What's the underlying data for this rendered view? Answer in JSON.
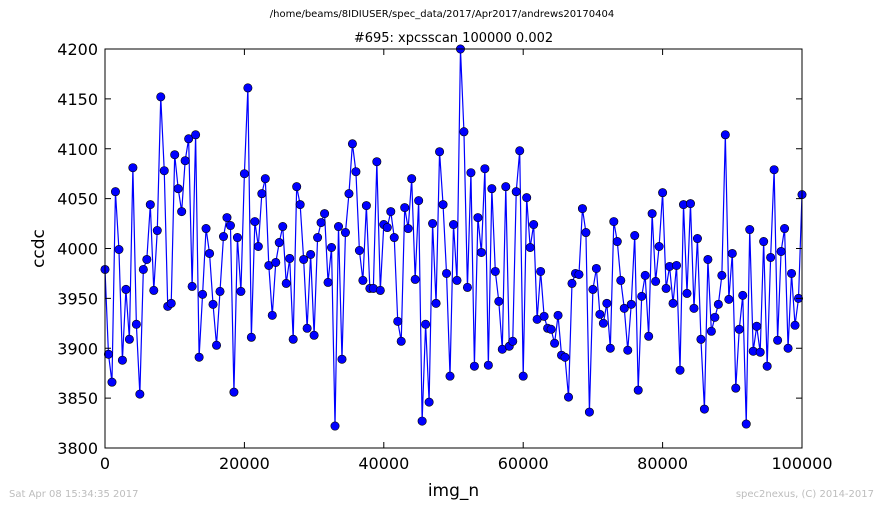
{
  "header": {
    "path": "/home/beams/8IDIUSER/spec_data/2017/Apr2017/andrews20170404"
  },
  "footer": {
    "timestamp": "Sat Apr 08 15:34:35 2017",
    "credit": "spec2nexus, (C) 2014-2017"
  },
  "chart_data": {
    "type": "line",
    "title": "#695: xpcsscan 100000 0.002",
    "xlabel": "img_n",
    "ylabel": "ccdc",
    "xlim": [
      0,
      100000
    ],
    "ylim": [
      3800,
      4200
    ],
    "xticks": [
      0,
      20000,
      40000,
      60000,
      80000,
      100000
    ],
    "yticks": [
      3800,
      3850,
      3900,
      3950,
      4000,
      4050,
      4100,
      4150,
      4200
    ],
    "grid": false,
    "marker": "circle",
    "color": "#0000ff",
    "series": [
      {
        "x": [
          0,
          500,
          1000,
          1500,
          2000,
          2500,
          3000,
          3500,
          4000,
          4500,
          5000,
          5500,
          6000,
          6500,
          7000,
          7500,
          8000,
          8500,
          9000,
          9500,
          10000,
          10500,
          11000,
          11500,
          12000,
          12500,
          13000,
          13500,
          14000,
          14500,
          15000,
          15500,
          16000,
          16500,
          17000,
          17500,
          18000,
          18500,
          19000,
          19500,
          20000,
          20500,
          21000,
          21500,
          22000,
          22500,
          23000,
          23500,
          24000,
          24500,
          25000,
          25500,
          26000,
          26500,
          27000,
          27500,
          28000,
          28500,
          29000,
          29500,
          30000,
          30500,
          31000,
          31500,
          32000,
          32500,
          33000,
          33500,
          34000,
          34500,
          35000,
          35500,
          36000,
          36500,
          37000,
          37500,
          38000,
          38500,
          39000,
          39500,
          40000,
          40500,
          41000,
          41500,
          42000,
          42500,
          43000,
          43500,
          44000,
          44500,
          45000,
          45500,
          46000,
          46500,
          47000,
          47500,
          48000,
          48500,
          49000,
          49500,
          50000,
          50500,
          51000,
          51500,
          52000,
          52500,
          53000,
          53500,
          54000,
          54500,
          55000,
          55500,
          56000,
          56500,
          57000,
          57500,
          58000,
          58500,
          59000,
          59500,
          60000,
          60500,
          61000,
          61500,
          62000,
          62500,
          63000,
          63500,
          64000,
          64500,
          65000,
          65500,
          66000,
          66500,
          67000,
          67500,
          68000,
          68500,
          69000,
          69500,
          70000,
          70500,
          71000,
          71500,
          72000,
          72500,
          73000,
          73500,
          74000,
          74500,
          75000,
          75500,
          76000,
          76500,
          77000,
          77500,
          78000,
          78500,
          79000,
          79500,
          80000,
          80500,
          81000,
          81500,
          82000,
          82500,
          83000,
          83500,
          84000,
          84500,
          85000,
          85500,
          86000,
          86500,
          87000,
          87500,
          88000,
          88500,
          89000,
          89500,
          90000,
          90500,
          91000,
          91500,
          92000,
          92500,
          93000,
          93500,
          94000,
          94500,
          95000,
          95500,
          96000,
          96500,
          97000,
          97500,
          98000,
          98500,
          99000,
          99500,
          100000
        ],
        "y": [
          3979,
          3894,
          3866,
          4057,
          3999,
          3888,
          3959,
          3909,
          4081,
          3924,
          3854,
          3979,
          3989,
          4044,
          3958,
          4018,
          4152,
          4078,
          3942,
          3945,
          4094,
          4060,
          4037,
          4088,
          4110,
          3962,
          4114,
          3891,
          3954,
          4020,
          3995,
          3944,
          3903,
          3957,
          4012,
          4031,
          4023,
          3856,
          4011,
          3957,
          4075,
          4161,
          3911,
          4027,
          4002,
          4055,
          4070,
          3983,
          3933,
          3986,
          4006,
          4022,
          3965,
          3990,
          3909,
          4062,
          4044,
          3989,
          3920,
          3994,
          3913,
          4011,
          4026,
          4035,
          3966,
          4001,
          3822,
          4022,
          3889,
          4016,
          4055,
          4105,
          4077,
          3998,
          3968,
          4043,
          3960,
          3960,
          4087,
          3958,
          4024,
          4021,
          4037,
          4011,
          3927,
          3907,
          4041,
          4020,
          4070,
          3969,
          4048,
          3827,
          3924,
          3846,
          4025,
          3945,
          4097,
          4044,
          3975,
          3872,
          4024,
          3968,
          4200,
          4117,
          3961,
          4076,
          3882,
          4031,
          3996,
          4080,
          3883,
          4060,
          3977,
          3947,
          3899,
          4062,
          3902,
          3907,
          4057,
          4098,
          3872,
          4051,
          4001,
          4024,
          3929,
          3977,
          3932,
          3920,
          3919,
          3905,
          3933,
          3893,
          3891,
          3851,
          3965,
          3975,
          3974,
          4040,
          4016,
          3836,
          3959,
          3980,
          3934,
          3925,
          3945,
          3900,
          4027,
          4007,
          3968,
          3940,
          3898,
          3944,
          4013,
          3858,
          3952,
          3973,
          3912,
          4035,
          3967,
          4002,
          4056,
          3960,
          3982,
          3945,
          3983,
          3878,
          4044,
          3955,
          4045,
          3940,
          4010,
          3909,
          3839,
          3989,
          3917,
          3931,
          3944,
          3973,
          4114,
          3949,
          3995,
          3860,
          3919,
          3953,
          3824,
          4019,
          3897,
          3922,
          3896,
          4007,
          3882,
          3991,
          4079,
          3908,
          3997,
          4020,
          3900,
          3975,
          3923,
          3950,
          4054
        ]
      }
    ]
  }
}
